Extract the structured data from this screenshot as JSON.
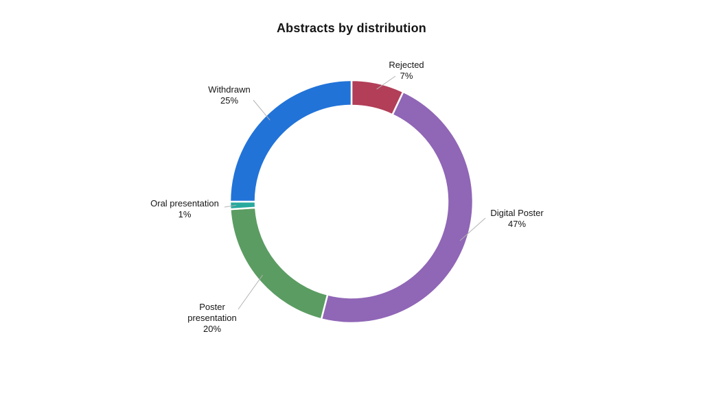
{
  "chart_data": {
    "type": "pie",
    "subtype": "donut",
    "title": "Abstracts by distribution",
    "direction": "clockwise",
    "start_angle_deg": 0,
    "inner_radius_ratio": 0.79,
    "background": "#ffffff",
    "leader_line_color": "#b3b3b3",
    "segments": [
      {
        "label": "Rejected",
        "value": 7,
        "pct": "7%",
        "color": "#b23e58"
      },
      {
        "label": "Digital Poster",
        "value": 47,
        "pct": "47%",
        "color": "#9066b6"
      },
      {
        "label": "Poster presentation",
        "value": 20,
        "pct": "20%",
        "color": "#5b9c62"
      },
      {
        "label": "Oral presentation",
        "value": 1,
        "pct": "1%",
        "color": "#28a99e"
      },
      {
        "label": "Withdrawn",
        "value": 25,
        "pct": "25%",
        "color": "#2173d8"
      }
    ]
  }
}
